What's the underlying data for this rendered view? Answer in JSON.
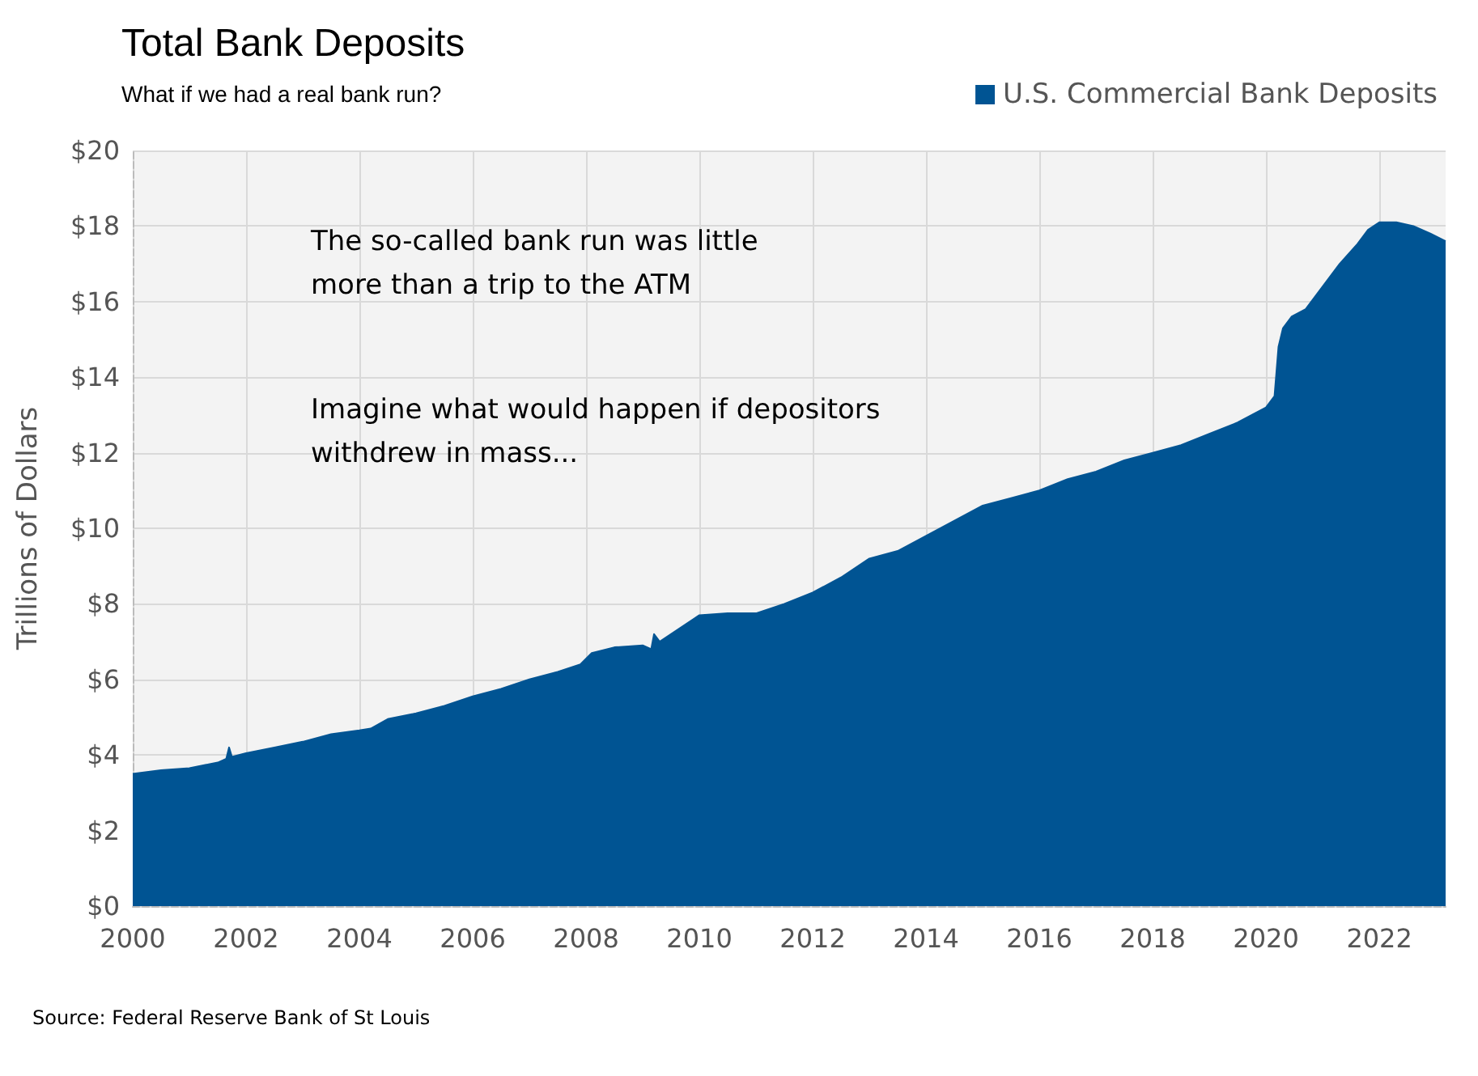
{
  "chart_data": {
    "type": "area",
    "title": "Total Bank Deposits",
    "subtitle": "What if we had a real bank run?",
    "ylabel": "Trillions of Dollars",
    "annotations": [
      "The so-called bank run was little\nmore than a trip to the ATM",
      "Imagine what would happen if depositors\nwithdrew in mass...",
      "Source: Federal Reserve Bank of St Louis"
    ],
    "x": [
      2000,
      2000.5,
      2001,
      2001.5,
      2001.65,
      2001.7,
      2001.75,
      2002,
      2002.5,
      2003,
      2003.5,
      2004,
      2004.2,
      2004.5,
      2005,
      2005.5,
      2006,
      2006.5,
      2007,
      2007.5,
      2007.9,
      2008.1,
      2008.5,
      2009,
      2009.15,
      2009.2,
      2009.3,
      2009.6,
      2010,
      2010.5,
      2011,
      2011.5,
      2012,
      2012.5,
      2013,
      2013.5,
      2014,
      2014.5,
      2015,
      2015.5,
      2016,
      2016.5,
      2017,
      2017.5,
      2018,
      2018.5,
      2019,
      2019.5,
      2020,
      2020.15,
      2020.22,
      2020.3,
      2020.45,
      2020.7,
      2021,
      2021.3,
      2021.6,
      2021.8,
      2022,
      2022.3,
      2022.6,
      2022.9,
      2023.17
    ],
    "series": [
      {
        "name": "U.S. Commercial Bank Deposits",
        "color": "#005493",
        "values": [
          3.5,
          3.6,
          3.65,
          3.8,
          3.9,
          4.2,
          3.95,
          4.05,
          4.2,
          4.35,
          4.55,
          4.65,
          4.7,
          4.95,
          5.1,
          5.3,
          5.55,
          5.75,
          6.0,
          6.2,
          6.4,
          6.7,
          6.85,
          6.9,
          6.8,
          7.2,
          7.0,
          7.3,
          7.7,
          7.75,
          7.75,
          8.0,
          8.3,
          8.7,
          9.2,
          9.4,
          9.8,
          10.2,
          10.6,
          10.8,
          11.0,
          11.3,
          11.5,
          11.8,
          12.0,
          12.2,
          12.5,
          12.8,
          13.2,
          13.5,
          14.8,
          15.3,
          15.6,
          15.8,
          16.4,
          17.0,
          17.5,
          17.9,
          18.1,
          18.1,
          18.0,
          17.8,
          17.6
        ]
      }
    ],
    "xlim": [
      2000,
      2023.17
    ],
    "xticks": [
      2000,
      2002,
      2004,
      2006,
      2008,
      2010,
      2012,
      2014,
      2016,
      2018,
      2020,
      2022
    ],
    "ylim": [
      0,
      20
    ],
    "yticks": [
      {
        "value": 0,
        "label": "$0"
      },
      {
        "value": 2,
        "label": "$2"
      },
      {
        "value": 4,
        "label": "$4"
      },
      {
        "value": 6,
        "label": "$6"
      },
      {
        "value": 8,
        "label": "$8"
      },
      {
        "value": 10,
        "label": "$10"
      },
      {
        "value": 12,
        "label": "$12"
      },
      {
        "value": 14,
        "label": "$14"
      },
      {
        "value": 16,
        "label": "$16"
      },
      {
        "value": 18,
        "label": "$18"
      },
      {
        "value": 20,
        "label": "$20"
      }
    ],
    "grid": true,
    "legend": "top right"
  }
}
